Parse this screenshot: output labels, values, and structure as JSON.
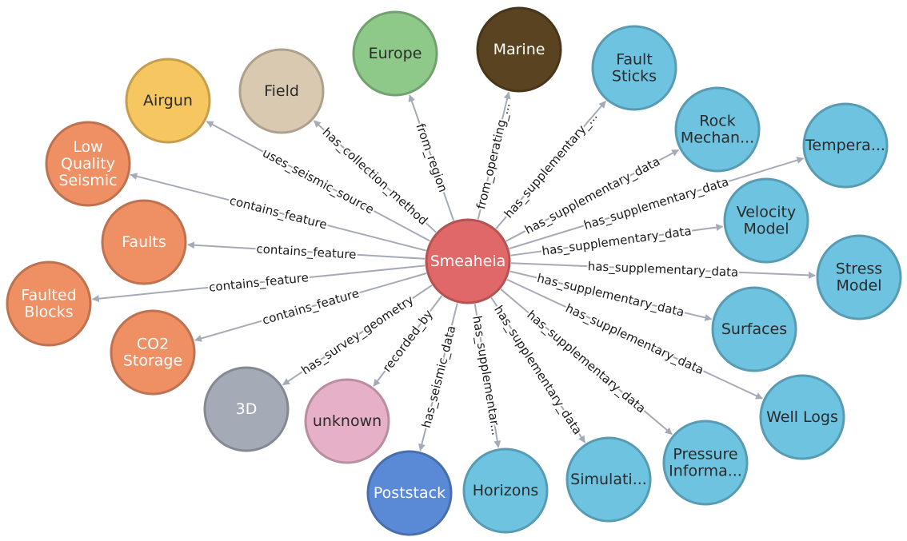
{
  "colors": {
    "edge": "#a5abb6",
    "center": "#e06868",
    "blue": "#6ec3e0",
    "orange": "#ef8f64",
    "tan": "#d8c9b0",
    "yellow": "#f6c760",
    "green": "#8ec98a",
    "brown": "#5a4320",
    "gray": "#a5abb6",
    "pink": "#e6b1c8",
    "darkblue": "#5a8ad6"
  },
  "center": {
    "id": "smeaheia",
    "label": "Smeaheia"
  },
  "nodes": [
    {
      "id": "europe",
      "label": "Europe",
      "color": "green",
      "edge": "from_region"
    },
    {
      "id": "marine",
      "label": "Marine",
      "color": "brown",
      "edge": "from_operating_..."
    },
    {
      "id": "fault-sticks",
      "label": "Fault\nSticks",
      "color": "blue",
      "edge": "has_supplementary_..."
    },
    {
      "id": "rock-mechan",
      "label": "Rock\nMechan...",
      "color": "blue",
      "edge": "has_supplementary_data"
    },
    {
      "id": "tempera",
      "label": "Tempera...",
      "color": "blue",
      "edge": "has_supplementary_data"
    },
    {
      "id": "velocity-model",
      "label": "Velocity\nModel",
      "color": "blue",
      "edge": "has_supplementary_data"
    },
    {
      "id": "stress-model",
      "label": "Stress\nModel",
      "color": "blue",
      "edge": "has_supplementary_data"
    },
    {
      "id": "surfaces",
      "label": "Surfaces",
      "color": "blue",
      "edge": "has_supplementary_data"
    },
    {
      "id": "well-logs",
      "label": "Well Logs",
      "color": "blue",
      "edge": "has_supplementary_data"
    },
    {
      "id": "pressure-informa",
      "label": "Pressure\nInforma...",
      "color": "blue",
      "edge": "has_supplementary_data"
    },
    {
      "id": "simulati",
      "label": "Simulati...",
      "color": "blue",
      "edge": "has_supplementary_data"
    },
    {
      "id": "horizons",
      "label": "Horizons",
      "color": "blue",
      "edge": "has_supplementar..."
    },
    {
      "id": "poststack",
      "label": "Poststack",
      "color": "darkblue",
      "edge": "has_seismic_data"
    },
    {
      "id": "unknown",
      "label": "unknown",
      "color": "pink",
      "edge": "recorded_by"
    },
    {
      "id": "3d",
      "label": "3D",
      "color": "gray",
      "edge": "has_survey_geometry"
    },
    {
      "id": "co2-storage",
      "label": "CO2\nStorage",
      "color": "orange",
      "edge": "contains_feature"
    },
    {
      "id": "faulted-blocks",
      "label": "Faulted\nBlocks",
      "color": "orange",
      "edge": "contains_feature"
    },
    {
      "id": "faults",
      "label": "Faults",
      "color": "orange",
      "edge": "contains_feature"
    },
    {
      "id": "low-quality-seismic",
      "label": "Low\nQuality\nSeismic",
      "color": "orange",
      "edge": "contains_feature"
    },
    {
      "id": "airgun",
      "label": "Airgun",
      "color": "yellow",
      "edge": "uses_seismic_source"
    },
    {
      "id": "field",
      "label": "Field",
      "color": "tan",
      "edge": "has_collection_method"
    }
  ]
}
